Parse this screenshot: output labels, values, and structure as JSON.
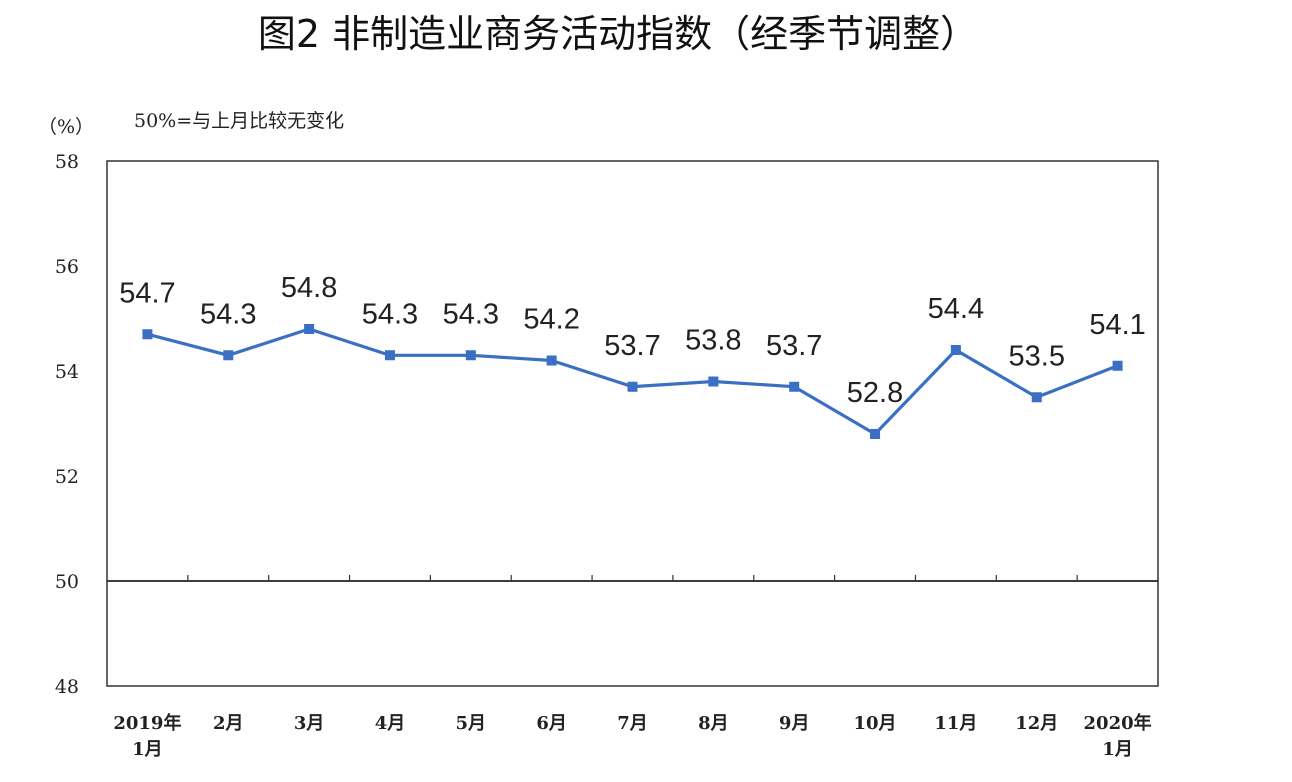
{
  "chart_data": {
    "type": "line",
    "title": "图2 非制造业商务活动指数（经季节调整）",
    "ylabel": "（%）",
    "annotation": "50%=与上月比较无变化",
    "ylim": [
      48,
      58
    ],
    "yticks": [
      "58",
      "56",
      "54",
      "52",
      "50",
      "48"
    ],
    "categories": [
      [
        "2019年",
        "1月"
      ],
      [
        "2月"
      ],
      [
        "3月"
      ],
      [
        "4月"
      ],
      [
        "5月"
      ],
      [
        "6月"
      ],
      [
        "7月"
      ],
      [
        "8月"
      ],
      [
        "9月"
      ],
      [
        "10月"
      ],
      [
        "11月"
      ],
      [
        "12月"
      ],
      [
        "2020年",
        "1月"
      ]
    ],
    "values": [
      54.7,
      54.3,
      54.8,
      54.3,
      54.3,
      54.2,
      53.7,
      53.8,
      53.7,
      52.8,
      54.4,
      53.5,
      54.1
    ],
    "data_labels": [
      "54.7",
      "54.3",
      "54.8",
      "54.3",
      "54.3",
      "54.2",
      "53.7",
      "53.8",
      "53.7",
      "52.8",
      "54.4",
      "53.5",
      "54.1"
    ],
    "reference_line": 50,
    "grid": false,
    "series_color": "#3a6fc4"
  }
}
